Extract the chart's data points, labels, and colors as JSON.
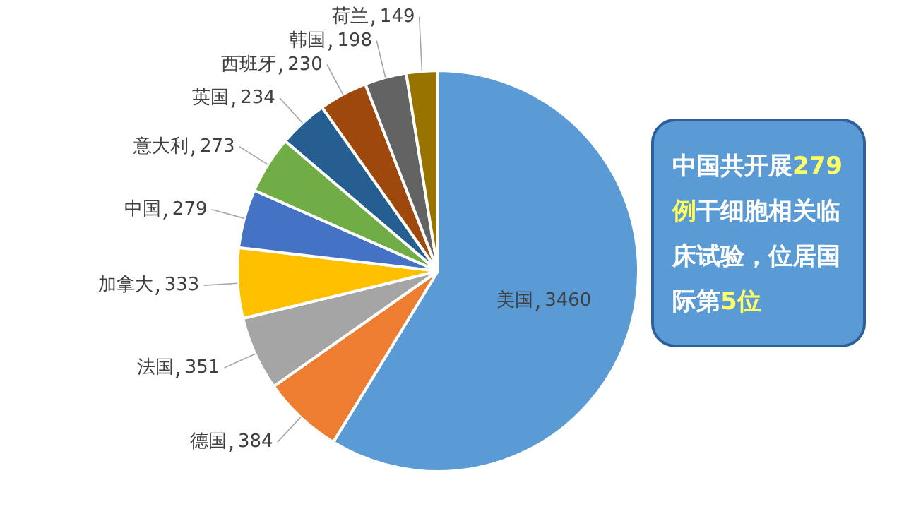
{
  "chart_data": {
    "type": "pie",
    "categories": [
      "美国",
      "德国",
      "法国",
      "加拿大",
      "中国",
      "意大利",
      "英国",
      "西班牙",
      "韩国",
      "荷兰"
    ],
    "values": [
      3460,
      384,
      351,
      333,
      279,
      273,
      234,
      230,
      198,
      149
    ],
    "colors": [
      "#5b9bd5",
      "#ed7d31",
      "#a5a5a5",
      "#ffc000",
      "#4472c4",
      "#70ad47",
      "#255e91",
      "#9e480e",
      "#636363",
      "#997300"
    ],
    "data_labels": true,
    "annotations": [
      "中国共开展279例干细胞相关临床试验，位居国际第5位"
    ]
  }
}
